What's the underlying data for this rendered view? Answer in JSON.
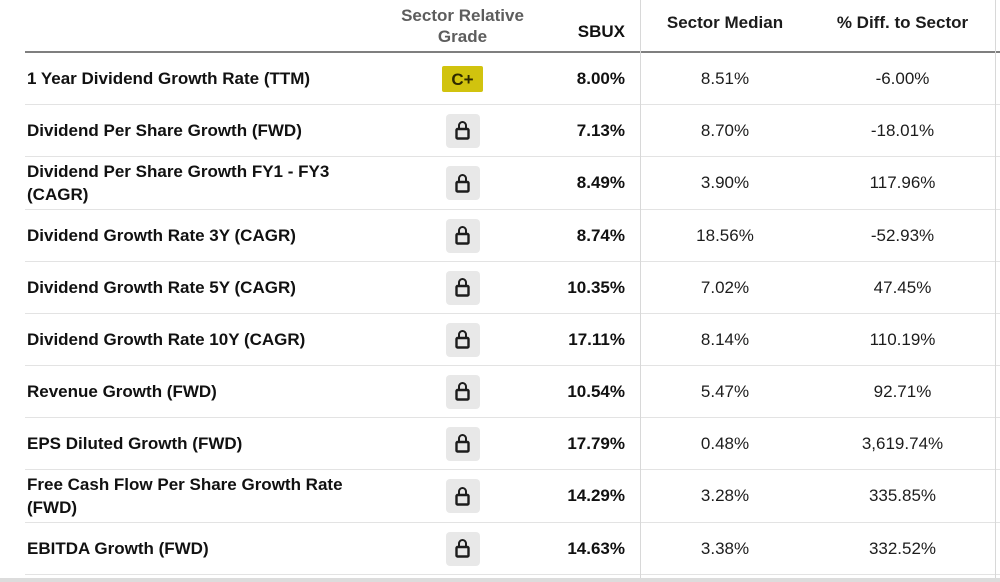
{
  "table": {
    "headers": {
      "metric": "",
      "grade": "Sector Relative Grade",
      "ticker": "SBUX",
      "sector_median": "Sector Median",
      "diff": "% Diff. to Sector"
    },
    "rows": [
      {
        "metric": "1 Year Dividend Growth Rate (TTM)",
        "grade": "C+",
        "sbux": "8.00%",
        "median": "8.51%",
        "diff": "-6.00%"
      },
      {
        "metric": "Dividend Per Share Growth (FWD)",
        "grade": null,
        "sbux": "7.13%",
        "median": "8.70%",
        "diff": "-18.01%"
      },
      {
        "metric": "Dividend Per Share Growth FY1 - FY3 (CAGR)",
        "grade": null,
        "sbux": "8.49%",
        "median": "3.90%",
        "diff": "117.96%"
      },
      {
        "metric": "Dividend Growth Rate 3Y (CAGR)",
        "grade": null,
        "sbux": "8.74%",
        "median": "18.56%",
        "diff": "-52.93%"
      },
      {
        "metric": "Dividend Growth Rate 5Y (CAGR)",
        "grade": null,
        "sbux": "10.35%",
        "median": "7.02%",
        "diff": "47.45%"
      },
      {
        "metric": "Dividend Growth Rate 10Y (CAGR)",
        "grade": null,
        "sbux": "17.11%",
        "median": "8.14%",
        "diff": "110.19%"
      },
      {
        "metric": "Revenue Growth (FWD)",
        "grade": null,
        "sbux": "10.54%",
        "median": "5.47%",
        "diff": "92.71%"
      },
      {
        "metric": "EPS Diluted Growth (FWD)",
        "grade": null,
        "sbux": "17.79%",
        "median": "0.48%",
        "diff": "3,619.74%"
      },
      {
        "metric": "Free Cash Flow Per Share Growth Rate (FWD)",
        "grade": null,
        "sbux": "14.29%",
        "median": "3.28%",
        "diff": "335.85%"
      },
      {
        "metric": "EBITDA Growth (FWD)",
        "grade": null,
        "sbux": "14.63%",
        "median": "3.38%",
        "diff": "332.52%"
      }
    ],
    "icons": {
      "locked_metric": "lock-icon"
    },
    "colors": {
      "grade_badge_bg": "#d1c30e",
      "header_text": "#5d5d5d",
      "header_border": "#7f7f7f",
      "row_border": "#e3e3e3",
      "lock_bg": "#e8e8e8"
    }
  }
}
